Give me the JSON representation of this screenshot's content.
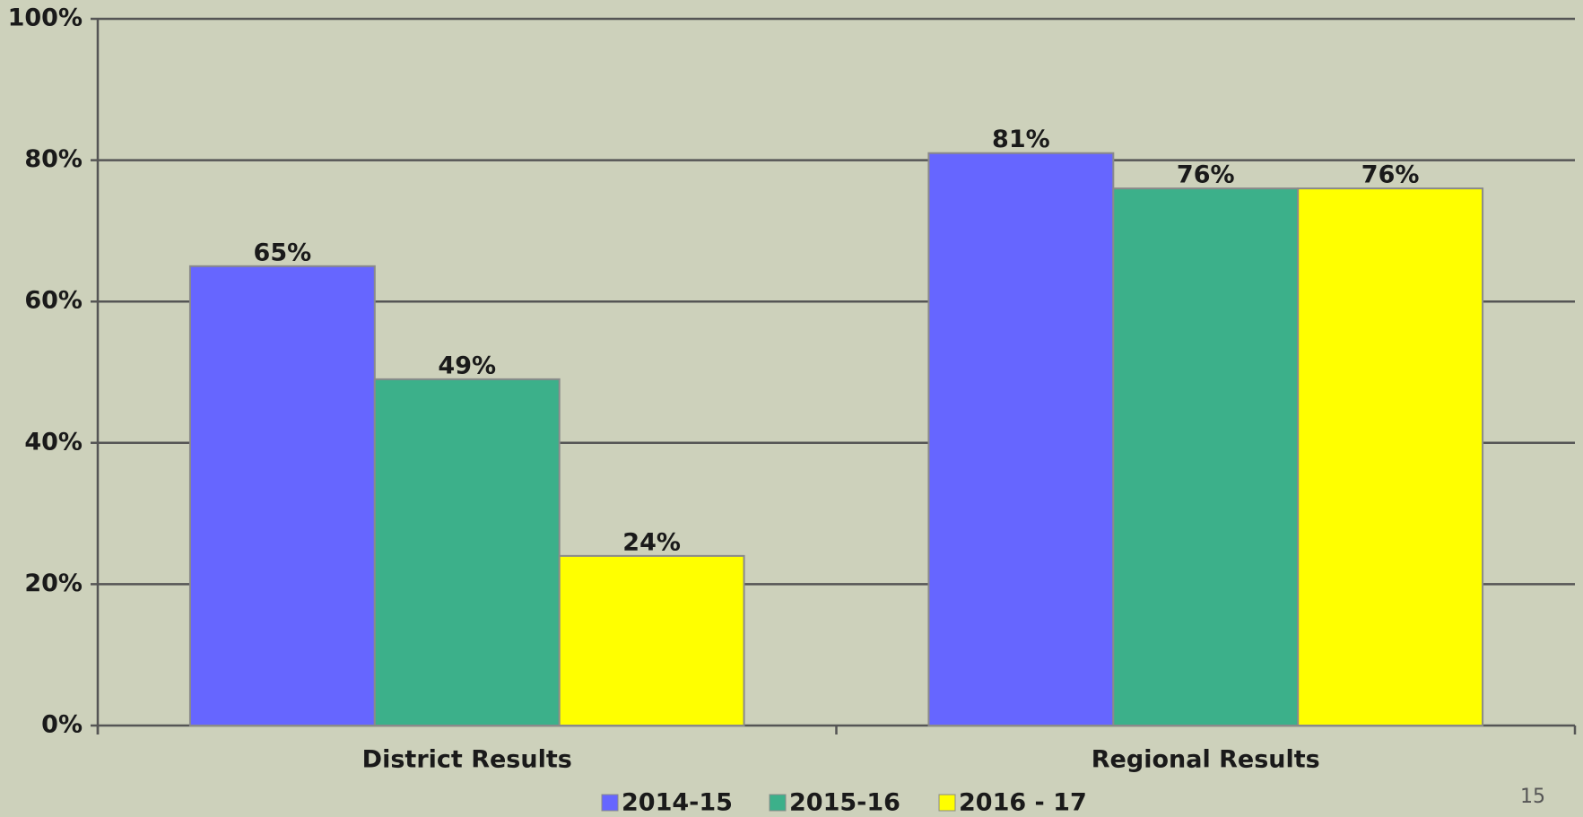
{
  "chart_data": {
    "type": "bar",
    "categories": [
      "District Results",
      "Regional Results"
    ],
    "series": [
      {
        "name": "2014-15",
        "color": "#6666ff",
        "values": [
          65,
          81
        ],
        "value_labels": [
          "65%",
          "81%"
        ]
      },
      {
        "name": "2015-16",
        "color": "#3cb08a",
        "values": [
          49,
          76
        ],
        "value_labels": [
          "49%",
          "76%"
        ]
      },
      {
        "name": "2016 - 17",
        "color": "#ffff00",
        "values": [
          24,
          76
        ],
        "value_labels": [
          "24%",
          "76%"
        ]
      }
    ],
    "ylim": [
      0,
      100
    ],
    "yticks": [
      {
        "value": 0,
        "label": "0%"
      },
      {
        "value": 20,
        "label": "20%"
      },
      {
        "value": 40,
        "label": "40%"
      },
      {
        "value": 60,
        "label": "60%"
      },
      {
        "value": 80,
        "label": "80%"
      },
      {
        "value": 100,
        "label": "100%"
      }
    ],
    "grid": true,
    "legend": "bottom",
    "page_number": "15"
  }
}
